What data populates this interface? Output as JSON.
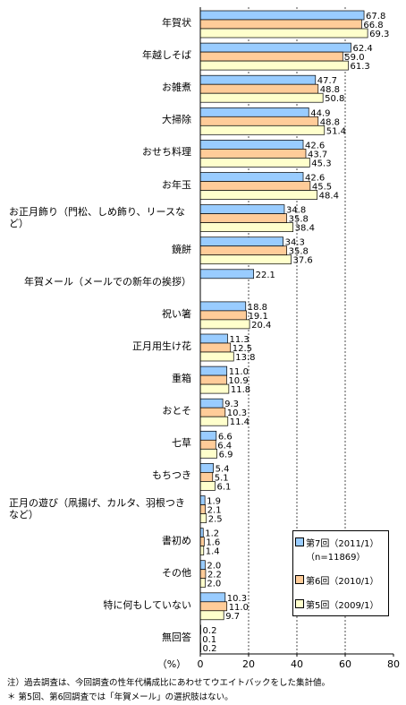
{
  "chart_data": {
    "type": "bar",
    "orientation": "horizontal",
    "categories": [
      "年賀状",
      "年越しそば",
      "お雑煮",
      "大掃除",
      "おせち料理",
      "お年玉",
      "お正月飾り（門松、しめ飾り、リースなど）",
      "鏡餅",
      "年賀メール（メールでの新年の挨拶）",
      "祝い箸",
      "正月用生け花",
      "重箱",
      "おとそ",
      "七草",
      "もちつき",
      "正月の遊び（凧揚げ、カルタ、羽根つきなど）",
      "書初め",
      "その他",
      "特に何もしていない",
      "無回答"
    ],
    "series": [
      {
        "name": "第7回（2011/1）（n=11869）",
        "color": "#99ccff",
        "values": [
          67.8,
          62.4,
          47.7,
          44.9,
          42.6,
          42.6,
          34.8,
          34.3,
          22.1,
          18.8,
          11.3,
          11.0,
          9.3,
          6.6,
          5.4,
          1.9,
          1.2,
          2.0,
          10.3,
          0.2
        ],
        "value_labels": [
          "67.8",
          "62.4",
          "47.7",
          "44.9",
          "42.6",
          "42.6",
          "34.8",
          "34.3",
          "22.1",
          "18.8",
          "11.3",
          "11.0",
          "9.3",
          "6.6",
          "5.4",
          "1.9",
          "1.2",
          "2.0",
          "10.3",
          "0.2"
        ]
      },
      {
        "name": "第6回（2010/1）",
        "color": "#ffcc99",
        "values": [
          66.8,
          59.0,
          48.8,
          48.8,
          43.7,
          45.5,
          35.8,
          35.8,
          null,
          19.1,
          12.5,
          10.9,
          10.3,
          6.4,
          5.1,
          2.1,
          1.6,
          2.2,
          11.0,
          0.1
        ],
        "value_labels": [
          "66.8",
          "59.0",
          "48.8",
          "48.8",
          "43.7",
          "45.5",
          "35.8",
          "35.8",
          null,
          "19.1",
          "12.5",
          "10.9",
          "10.3",
          "6.4",
          "5.1",
          "2.1",
          "1.6",
          "2.2",
          "11.0",
          "0.1"
        ]
      },
      {
        "name": "第5回（2009/1）",
        "color": "#ffffcc",
        "values": [
          69.3,
          61.3,
          50.8,
          51.4,
          45.3,
          48.4,
          38.4,
          37.6,
          null,
          20.4,
          13.8,
          11.8,
          11.4,
          6.9,
          6.1,
          2.5,
          1.4,
          2.0,
          9.7,
          0.2
        ],
        "value_labels": [
          "69.3",
          "61.3",
          "50.8",
          "51.4",
          "45.3",
          "48.4",
          "38.4",
          "37.6",
          null,
          "20.4",
          "13.8",
          "11.8",
          "11.4",
          "6.9",
          "6.1",
          "2.5",
          "1.4",
          "2.0",
          "9.7",
          "0.2"
        ]
      }
    ],
    "xlabel": "（%）",
    "xlim": [
      0,
      80
    ],
    "xticks": [
      0,
      20,
      40,
      60,
      80
    ],
    "grid": true,
    "legend_position": "lower right",
    "notes": [
      "注）過去調査は、今回調査の性年代構成比にあわせてウエイトバックをした集計値。",
      "＊ 第5回、第6回調査では「年賀メール」の選択肢はない。"
    ]
  }
}
